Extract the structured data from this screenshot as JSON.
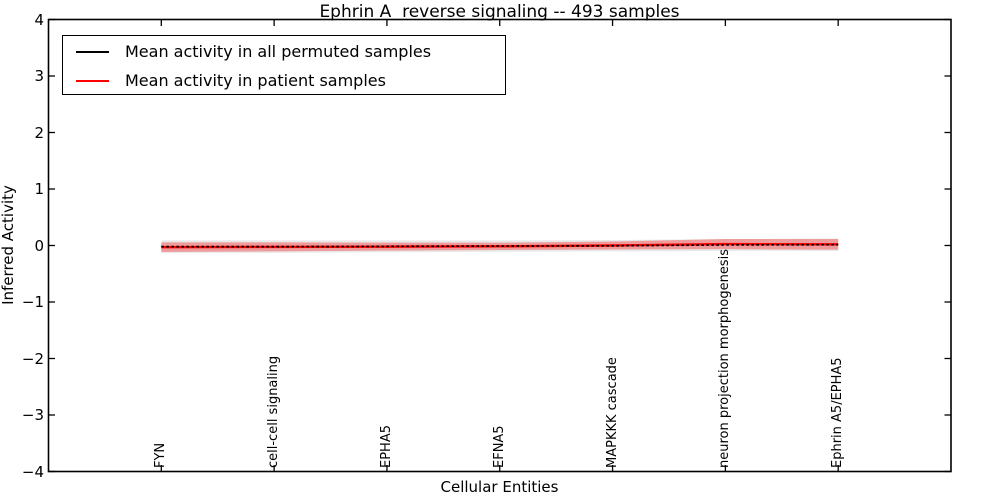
{
  "title": "Ephrin A  reverse signaling -- 493 samples",
  "legend": {
    "entries": [
      {
        "label": "Mean activity in all permuted samples",
        "color": "#000000"
      },
      {
        "label": "Mean activity in patient samples",
        "color": "#ff0000"
      }
    ]
  },
  "chart_data": {
    "type": "line",
    "title": "Ephrin A  reverse signaling -- 493 samples",
    "xlabel": "Cellular Entities",
    "ylabel": "Inferred Activity",
    "xlim": [
      -1,
      7
    ],
    "ylim": [
      -4,
      4
    ],
    "grid": false,
    "legend_position": "upper left",
    "categories": [
      "FYN",
      "cell-cell signaling",
      "EPHA5",
      "EFNA5",
      "MAPKKK cascade",
      "neuron projection morphogenesis",
      "Ephrin A5/EPHA5"
    ],
    "y_ticks": [
      4,
      3,
      2,
      1,
      0,
      -1,
      -2,
      -3,
      -4
    ],
    "y_tick_labels": [
      "4",
      "3",
      "2",
      "1",
      "0",
      "−1",
      "−2",
      "−3",
      "−4"
    ],
    "series": [
      {
        "name": "Mean activity in all permuted samples",
        "color": "#000000",
        "line_style": "dashed",
        "mean": [
          -0.02,
          -0.02,
          -0.015,
          -0.01,
          -0.005,
          0.01,
          0.015
        ],
        "band_halfwidth": [
          0.11,
          0.11,
          0.105,
          0.1,
          0.1,
          0.105,
          0.11
        ],
        "band_color": "rgba(128,128,128,0.18)"
      },
      {
        "name": "Mean activity in patient samples",
        "color": "#ff0000",
        "line_style": "solid",
        "mean": [
          -0.03,
          -0.025,
          -0.02,
          -0.015,
          0.0,
          0.025,
          0.02
        ],
        "band_halfwidth": [
          0.085,
          0.08,
          0.07,
          0.065,
          0.07,
          0.09,
          0.095
        ],
        "band_color": "rgba(255,0,0,0.33)"
      }
    ]
  }
}
